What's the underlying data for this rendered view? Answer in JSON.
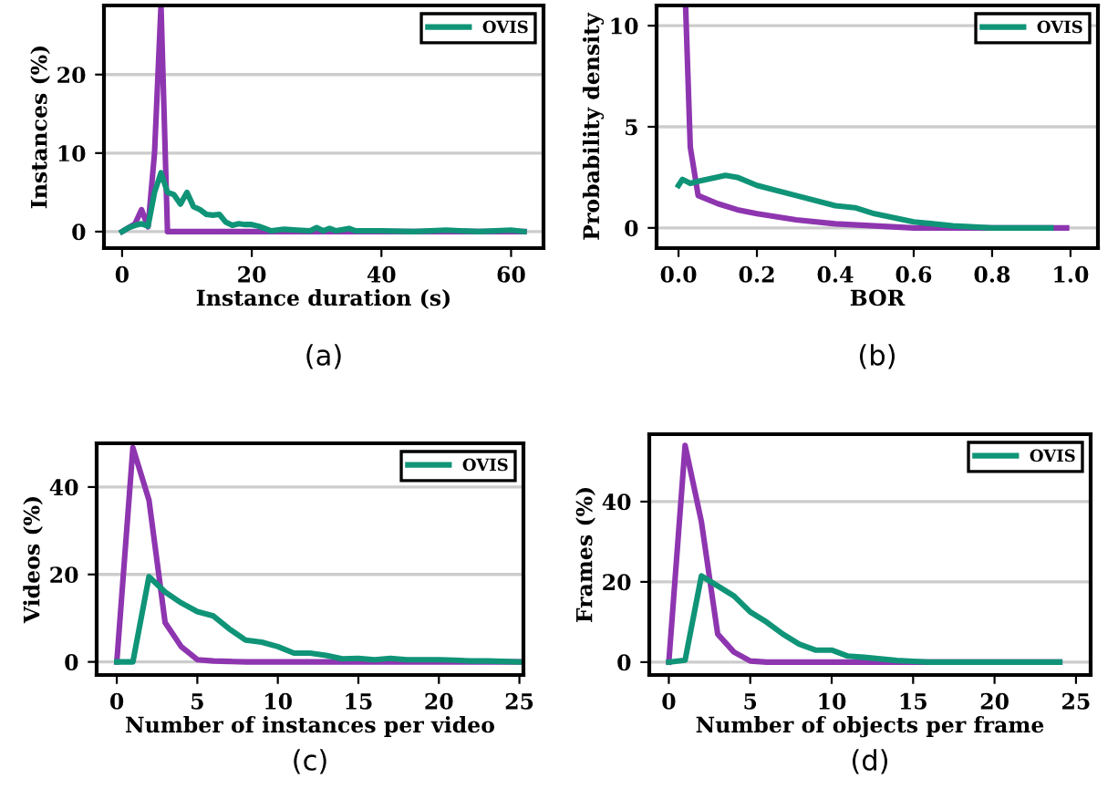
{
  "chart_data": [
    {
      "type": "line",
      "xlabel": "Instance duration (s)",
      "ylabel": "Instances (%)",
      "annotations": [
        "(a)"
      ],
      "xlim": [
        -2.8,
        65
      ],
      "ylim": [
        -2.1,
        28.8
      ],
      "xticks": [
        0,
        20,
        40,
        60
      ],
      "yticks": [
        0,
        10,
        20
      ],
      "grid": "y",
      "legend": "top right",
      "series": [
        {
          "color": "#8e35b0",
          "x": [
            0,
            1,
            2,
            3,
            4,
            5,
            6,
            7,
            62
          ],
          "values": [
            0,
            0.5,
            1,
            2.8,
            0.6,
            10,
            28.8,
            0,
            0
          ]
        },
        {
          "name": "OVIS",
          "color": "#109478",
          "x": [
            0,
            1,
            2,
            3,
            4,
            5,
            6,
            7,
            8,
            9,
            10,
            11,
            12,
            13,
            14,
            15,
            16,
            17,
            18,
            19,
            20,
            21,
            22,
            23,
            25,
            27,
            29,
            30,
            31,
            32,
            33,
            35,
            36,
            40,
            45,
            50,
            55,
            60,
            62
          ],
          "values": [
            0,
            0.5,
            0.8,
            1,
            0.7,
            5,
            7.5,
            5,
            4.7,
            3.5,
            5,
            3.2,
            2.8,
            2.2,
            2.1,
            2.2,
            1.2,
            0.8,
            1,
            0.9,
            0.9,
            0.7,
            0.4,
            0.1,
            0.3,
            0.2,
            0.1,
            0.5,
            0.1,
            0.4,
            0.1,
            0.4,
            0.1,
            0.1,
            0,
            0.2,
            0,
            0.2,
            0
          ]
        }
      ]
    },
    {
      "type": "line",
      "xlabel": "BOR",
      "ylabel": "Probability density",
      "annotations": [
        "(b)"
      ],
      "xlim": [
        -0.056,
        1.07
      ],
      "ylim": [
        -1,
        11
      ],
      "xticks": [
        {
          "value": 0,
          "label": "0.0"
        },
        0.2,
        0.4,
        0.6,
        0.8,
        {
          "value": 1,
          "label": "1.0"
        }
      ],
      "yticks": [
        0,
        5,
        10
      ],
      "grid": "y",
      "legend": "top right",
      "series": [
        {
          "color": "#8e35b0",
          "x": [
            0.018,
            0.03,
            0.05,
            0.1,
            0.15,
            0.2,
            0.3,
            0.4,
            0.5,
            0.6,
            0.7,
            0.8,
            0.99
          ],
          "values": [
            11,
            4,
            1.6,
            1.2,
            0.9,
            0.7,
            0.4,
            0.2,
            0.1,
            0,
            0,
            0,
            0
          ]
        },
        {
          "name": "OVIS",
          "color": "#109478",
          "x": [
            0,
            0.01,
            0.03,
            0.05,
            0.12,
            0.15,
            0.2,
            0.3,
            0.4,
            0.45,
            0.5,
            0.6,
            0.7,
            0.8,
            0.95
          ],
          "values": [
            2.1,
            2.4,
            2.2,
            2.3,
            2.6,
            2.5,
            2.1,
            1.6,
            1.1,
            1.0,
            0.7,
            0.3,
            0.1,
            0,
            0
          ]
        }
      ]
    },
    {
      "type": "line",
      "xlabel": "Number of instances per video",
      "ylabel": "Videos (%)",
      "annotations": [
        "(c)"
      ],
      "xlim": [
        -1.25,
        25.25
      ],
      "ylim": [
        -3,
        50
      ],
      "xticks": [
        0,
        5,
        10,
        15,
        20,
        25
      ],
      "yticks": [
        0,
        20,
        40
      ],
      "grid": "y",
      "legend": "top right",
      "x": [
        0,
        1,
        2,
        3,
        4,
        5,
        6,
        7,
        8,
        9,
        10,
        11,
        12,
        13,
        14,
        15,
        16,
        17,
        18,
        19,
        20,
        21,
        22,
        23,
        24,
        25
      ],
      "series": [
        {
          "color": "#8e35b0",
          "values": [
            0,
            49,
            37,
            9,
            3.5,
            0.5,
            0.2,
            0.1,
            0,
            0,
            0,
            0,
            0,
            0,
            0,
            0,
            0,
            0,
            0,
            0,
            0,
            0,
            0,
            0,
            0,
            0
          ]
        },
        {
          "name": "OVIS",
          "color": "#109478",
          "values": [
            0,
            0,
            19.5,
            16,
            13.5,
            11.5,
            10.5,
            7.5,
            5,
            4.5,
            3.5,
            2,
            2,
            1.5,
            0.7,
            0.8,
            0.5,
            0.8,
            0.5,
            0.5,
            0.5,
            0.4,
            0.2,
            0.2,
            0.1,
            0
          ]
        }
      ]
    },
    {
      "type": "line",
      "xlabel": "Number of objects per frame",
      "ylabel": "Frames (%)",
      "annotations": [
        "(d)"
      ],
      "xlim": [
        -1.2,
        25.9
      ],
      "ylim": [
        -3.2,
        56.8
      ],
      "xticks": [
        0,
        5,
        10,
        15,
        20,
        25
      ],
      "yticks": [
        0,
        20,
        40
      ],
      "grid": "y",
      "legend": "top right",
      "x": [
        0,
        1,
        2,
        3,
        4,
        5,
        6,
        7,
        8,
        9,
        10,
        11,
        12,
        13,
        14,
        15,
        16,
        17,
        18,
        19,
        20,
        21,
        22,
        23,
        24
      ],
      "series": [
        {
          "color": "#8e35b0",
          "values": [
            0,
            54,
            35,
            7,
            2.5,
            0.3,
            0,
            0,
            0,
            0,
            0,
            0,
            0,
            0,
            0,
            0,
            0,
            0,
            0,
            0,
            0,
            0,
            0,
            0,
            0
          ]
        },
        {
          "name": "OVIS",
          "color": "#109478",
          "values": [
            0,
            0.5,
            21.5,
            19,
            16.5,
            12.5,
            10,
            7,
            4.5,
            3,
            3,
            1.5,
            1.2,
            0.8,
            0.4,
            0.2,
            0,
            0,
            0,
            0,
            0,
            0,
            0,
            0,
            0
          ]
        }
      ]
    }
  ]
}
